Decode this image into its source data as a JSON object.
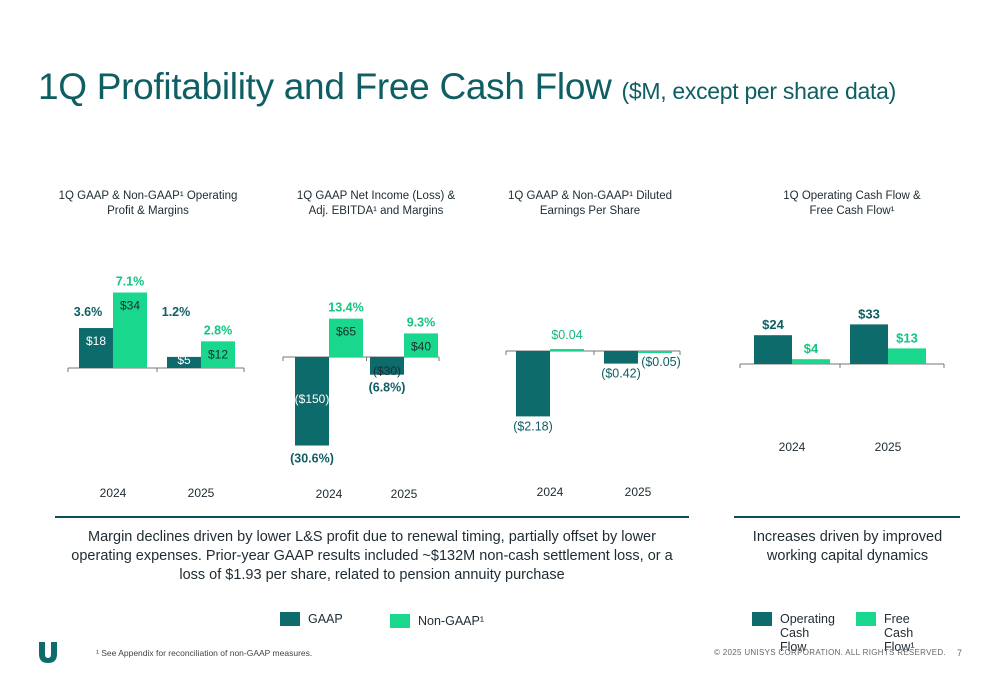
{
  "title": {
    "main": "1Q Profitability and Free Cash Flow",
    "sub": "($M, except per share data)"
  },
  "colors": {
    "gaap": "#0e6b6b",
    "non_gaap": "#19d78c",
    "dark_text": "#1e2b32",
    "separator": "#0e4d55"
  },
  "chart_data": [
    {
      "type": "bar",
      "title": "1Q GAAP & Non-GAAP¹ Operating Profit & Margins",
      "categories": [
        "2024",
        "2025"
      ],
      "series": [
        {
          "name": "GAAP",
          "values": [
            18,
            5
          ],
          "labels": [
            "$18",
            "$5"
          ],
          "margins": [
            "3.6%",
            "1.2%"
          ]
        },
        {
          "name": "Non-GAAP¹",
          "values": [
            34,
            12
          ],
          "labels": [
            "$34",
            "$12"
          ],
          "margins": [
            "7.1%",
            "2.8%"
          ]
        }
      ]
    },
    {
      "type": "bar",
      "title": "1Q GAAP Net Income (Loss) & Adj. EBITDA¹ and Margins",
      "categories": [
        "2024",
        "2025"
      ],
      "series": [
        {
          "name": "GAAP",
          "values": [
            -150,
            -30
          ],
          "labels": [
            "($150)",
            "($30)"
          ],
          "margins": [
            "(30.6%)",
            "(6.8%)"
          ]
        },
        {
          "name": "Non-GAAP¹",
          "values": [
            65,
            40
          ],
          "labels": [
            "$65",
            "$40"
          ],
          "margins": [
            "13.4%",
            "9.3%"
          ]
        }
      ]
    },
    {
      "type": "bar",
      "title": "1Q GAAP & Non-GAAP¹ Diluted Earnings Per Share",
      "categories": [
        "2024",
        "2025"
      ],
      "series": [
        {
          "name": "GAAP",
          "values": [
            -2.18,
            -0.42
          ],
          "labels": [
            "($2.18)",
            "($0.42)"
          ]
        },
        {
          "name": "Non-GAAP¹",
          "values": [
            0.04,
            -0.05
          ],
          "labels": [
            "$0.04",
            "($0.05)"
          ]
        }
      ]
    },
    {
      "type": "bar",
      "title": "1Q Operating Cash Flow & Free Cash Flow¹",
      "categories": [
        "2024",
        "2025"
      ],
      "series": [
        {
          "name": "Operating Cash Flow",
          "values": [
            24,
            33
          ],
          "labels": [
            "$24",
            "$33"
          ]
        },
        {
          "name": "Free Cash Flow¹",
          "values": [
            4,
            13
          ],
          "labels": [
            "$4",
            "$13"
          ]
        }
      ]
    }
  ],
  "notes": {
    "left": "Margin declines driven by lower L&S profit due to renewal timing, partially offset by lower operating expenses. Prior-year GAAP results included ~$132M non-cash settlement loss, or a loss of $1.93 per share, related to pension annuity purchase",
    "right": "Increases driven by improved working capital dynamics"
  },
  "legend": {
    "gaap": "GAAP",
    "non_gaap": "Non-GAAP¹",
    "ocf": "Operating Cash Flow",
    "fcf": "Free Cash Flow¹"
  },
  "footer": {
    "footnote": "¹ See Appendix for reconciliation of non-GAAP measures.",
    "copyright": "© 2025 UNISYS CORPORATION. ALL RIGHTS RESERVED.",
    "page": "7"
  }
}
